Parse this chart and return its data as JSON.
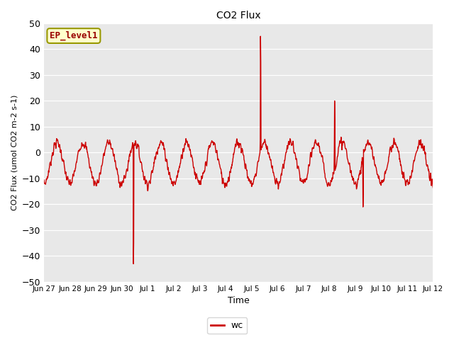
{
  "title": "CO2 Flux",
  "xlabel": "Time",
  "ylabel": "CO2 Flux (umol CO2 m-2 s-1)",
  "ylim": [
    -50,
    50
  ],
  "yticks": [
    -50,
    -40,
    -30,
    -20,
    -10,
    0,
    10,
    20,
    30,
    40,
    50
  ],
  "line_color": "#cc0000",
  "line_width": 1.0,
  "bg_color": "#e8e8e8",
  "legend_label": "wc",
  "ep_label": "EP_level1",
  "ep_box_facecolor": "#ffffcc",
  "ep_box_edgecolor": "#999900",
  "ep_text_color": "#990000",
  "x_tick_labels": [
    "Jun 27",
    "Jun 28",
    "Jun 29",
    "Jun 30",
    "Jul 1",
    "Jul 2",
    "Jul 3",
    "Jul 4",
    "Jul 5",
    "Jul 6",
    "Jul 7",
    "Jul 8",
    "Jul 9",
    "Jul 10",
    "Jul 11",
    "Jul 12"
  ],
  "x_tick_positions": [
    0,
    1,
    2,
    3,
    4,
    5,
    6,
    7,
    8,
    9,
    10,
    11,
    12,
    13,
    14,
    15
  ],
  "figsize": [
    6.4,
    4.8
  ],
  "dpi": 100
}
